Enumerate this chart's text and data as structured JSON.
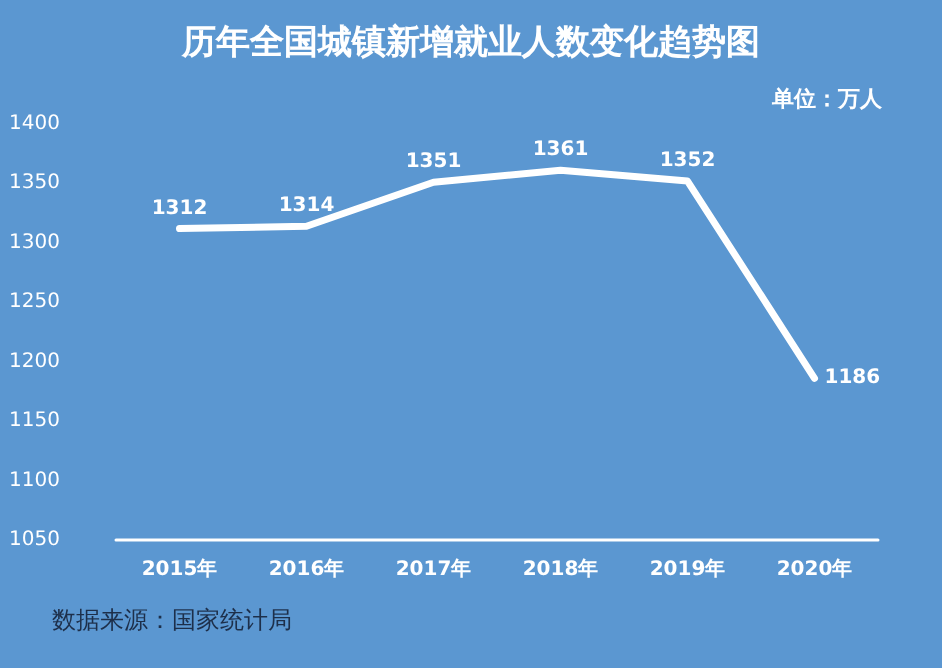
{
  "chart_data": {
    "type": "line",
    "title": "历年全国城镇新增就业人数变化趋势图",
    "annotations": [
      "单位：万人",
      "数据来源：国家统计局"
    ],
    "categories": [
      "2015年",
      "2016年",
      "2017年",
      "2018年",
      "2019年",
      "2020年"
    ],
    "series": [
      {
        "color": "#ffffff",
        "values": [
          1312,
          1314,
          1351,
          1361,
          1352,
          1186
        ]
      }
    ],
    "ylim": [
      1050,
      1400
    ],
    "yticks": [
      1050,
      1100,
      1150,
      1200,
      1250,
      1300,
      1350,
      1400
    ],
    "grid": false,
    "marker": "none",
    "line_style": "solid",
    "data_labels": true
  }
}
